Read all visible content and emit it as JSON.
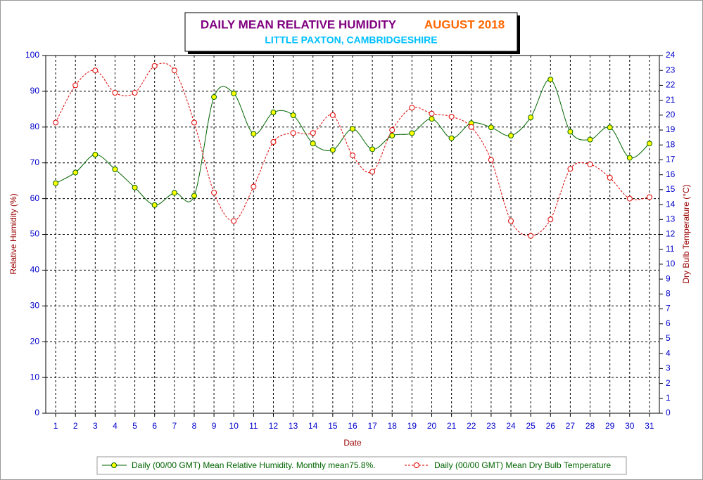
{
  "chart_data": {
    "type": "line",
    "title": "DAILY MEAN RELATIVE HUMIDITY",
    "title_period": "AUGUST 2018",
    "subtitle": "LITTLE PAXTON, CAMBRIDGESHIRE",
    "x_label": "Date",
    "y_label": "Relative Humidity (%)",
    "y2_label": "Dry Bulb Temperature (°C)",
    "categories": [
      1,
      2,
      3,
      4,
      5,
      6,
      7,
      8,
      9,
      10,
      11,
      12,
      13,
      14,
      15,
      16,
      17,
      18,
      19,
      20,
      21,
      22,
      23,
      24,
      25,
      26,
      27,
      28,
      29,
      30,
      31
    ],
    "series": [
      {
        "name": "Daily (00/00 GMT) Mean Relative Humidity. Monthly mean75.8%.",
        "color": "#006400",
        "marker_color": "#ffff00",
        "values": [
          64.3,
          67.3,
          72.3,
          68.2,
          63.1,
          58.2,
          61.6,
          60.8,
          88.4,
          89.4,
          78.1,
          84.1,
          83.3,
          75.4,
          73.6,
          79.5,
          73.8,
          77.6,
          78.3,
          82.3,
          76.9,
          81.1,
          79.9,
          77.6,
          82.7,
          93.3,
          78.7,
          76.5,
          79.9,
          71.4,
          75.4
        ]
      },
      {
        "name": "Daily (00/00 GMT) Mean Dry Bulb Temperature",
        "color": "#dd0000",
        "marker_color": "#ffffff",
        "axis": "y2",
        "dashed": true,
        "values": [
          19.5,
          22.0,
          23.0,
          21.5,
          21.5,
          23.3,
          23.0,
          19.5,
          14.8,
          12.9,
          15.2,
          18.2,
          18.8,
          18.8,
          20.0,
          17.3,
          16.2,
          19.0,
          20.5,
          20.1,
          19.9,
          19.2,
          17.0,
          12.9,
          11.9,
          13.0,
          16.4,
          16.7,
          15.8,
          14.4,
          14.5
        ]
      }
    ],
    "ylim": [
      0,
      100
    ],
    "yticks": [
      0,
      10,
      20,
      30,
      40,
      50,
      60,
      70,
      80,
      90,
      100
    ],
    "y2lim": [
      0,
      24
    ],
    "y2ticks": [
      0,
      1,
      2,
      3,
      4,
      5,
      6,
      7,
      8,
      9,
      10,
      11,
      12,
      13,
      14,
      15,
      16,
      17,
      18,
      19,
      20,
      21,
      22,
      23,
      24
    ],
    "grid": true
  }
}
